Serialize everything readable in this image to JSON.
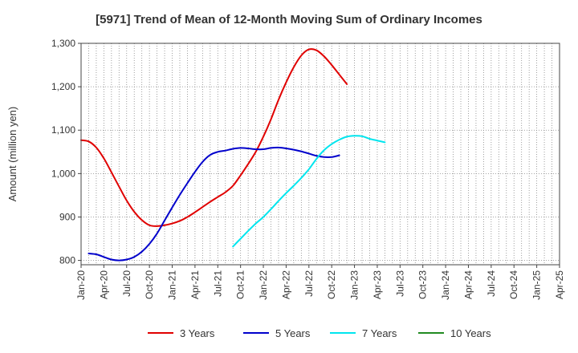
{
  "chart_data": {
    "type": "line",
    "title": "[5971]  Trend of Mean of 12-Month Moving Sum of Ordinary Incomes",
    "xlabel": "",
    "ylabel": "Amount (million yen)",
    "ylim": [
      790,
      1300
    ],
    "yticks": [
      800,
      900,
      1000,
      1100,
      1200,
      1300
    ],
    "ytick_labels": [
      "800",
      "900",
      "1,000",
      "1,100",
      "1,200",
      "1,300"
    ],
    "x_ticks": [
      "Jan-20",
      "Apr-20",
      "Jul-20",
      "Oct-20",
      "Jan-21",
      "Apr-21",
      "Jul-21",
      "Oct-21",
      "Jan-22",
      "Apr-22",
      "Jul-22",
      "Oct-22",
      "Jan-23",
      "Apr-23",
      "Jul-23",
      "Oct-23",
      "Jan-24",
      "Apr-24",
      "Jul-24",
      "Oct-24",
      "Jan-25",
      "Apr-25"
    ],
    "grid": true,
    "legend_position": "bottom",
    "series": [
      {
        "name": "3 Years",
        "color": "#e00000",
        "points": [
          [
            0,
            1077
          ],
          [
            1,
            1074
          ],
          [
            2,
            1060
          ],
          [
            3,
            1035
          ],
          [
            4,
            1003
          ],
          [
            5,
            970
          ],
          [
            6,
            938
          ],
          [
            7,
            912
          ],
          [
            8,
            893
          ],
          [
            9,
            881
          ],
          [
            10,
            879
          ],
          [
            11,
            881
          ],
          [
            12,
            885
          ],
          [
            13,
            891
          ],
          [
            14,
            900
          ],
          [
            15,
            911
          ],
          [
            16,
            923
          ],
          [
            17,
            935
          ],
          [
            18,
            946
          ],
          [
            19,
            957
          ],
          [
            20,
            972
          ],
          [
            21,
            996
          ],
          [
            22,
            1022
          ],
          [
            23,
            1050
          ],
          [
            24,
            1085
          ],
          [
            25,
            1125
          ],
          [
            26,
            1170
          ],
          [
            27,
            1210
          ],
          [
            28,
            1245
          ],
          [
            29,
            1272
          ],
          [
            30,
            1286
          ],
          [
            31,
            1284
          ],
          [
            32,
            1270
          ],
          [
            33,
            1250
          ],
          [
            34,
            1228
          ],
          [
            35,
            1206
          ]
        ]
      },
      {
        "name": "5 Years",
        "color": "#0000cc",
        "points": [
          [
            1,
            816
          ],
          [
            2,
            814
          ],
          [
            3,
            808
          ],
          [
            4,
            802
          ],
          [
            5,
            800
          ],
          [
            6,
            802
          ],
          [
            7,
            808
          ],
          [
            8,
            820
          ],
          [
            9,
            838
          ],
          [
            10,
            862
          ],
          [
            11,
            892
          ],
          [
            12,
            922
          ],
          [
            13,
            951
          ],
          [
            14,
            978
          ],
          [
            15,
            1004
          ],
          [
            16,
            1027
          ],
          [
            17,
            1043
          ],
          [
            18,
            1050
          ],
          [
            19,
            1053
          ],
          [
            20,
            1057
          ],
          [
            21,
            1059
          ],
          [
            22,
            1058
          ],
          [
            23,
            1056
          ],
          [
            24,
            1056
          ],
          [
            25,
            1059
          ],
          [
            26,
            1060
          ],
          [
            27,
            1058
          ],
          [
            28,
            1055
          ],
          [
            29,
            1051
          ],
          [
            30,
            1046
          ],
          [
            31,
            1041
          ],
          [
            32,
            1038
          ],
          [
            33,
            1038
          ],
          [
            34,
            1042
          ]
        ]
      },
      {
        "name": "7 Years",
        "color": "#00e5ee",
        "points": [
          [
            20,
            832
          ],
          [
            21,
            850
          ],
          [
            22,
            868
          ],
          [
            23,
            885
          ],
          [
            24,
            900
          ],
          [
            25,
            918
          ],
          [
            26,
            937
          ],
          [
            27,
            955
          ],
          [
            28,
            972
          ],
          [
            29,
            990
          ],
          [
            30,
            1010
          ],
          [
            31,
            1034
          ],
          [
            32,
            1054
          ],
          [
            33,
            1068
          ],
          [
            34,
            1078
          ],
          [
            35,
            1085
          ],
          [
            36,
            1087
          ],
          [
            37,
            1086
          ],
          [
            38,
            1080
          ],
          [
            39,
            1076
          ],
          [
            40,
            1072
          ]
        ]
      },
      {
        "name": "10 Years",
        "color": "#228b22",
        "points": []
      }
    ]
  }
}
